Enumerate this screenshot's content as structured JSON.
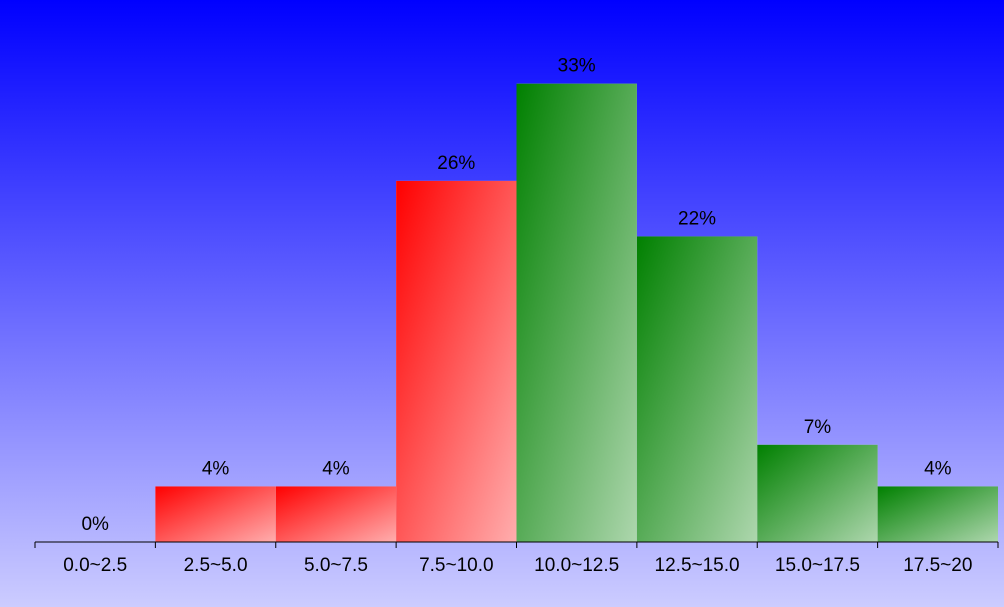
{
  "chart_data": {
    "type": "bar",
    "categories": [
      "0.0~2.5",
      "2.5~5.0",
      "5.0~7.5",
      "7.5~10.0",
      "10.0~12.5",
      "12.5~15.0",
      "15.0~17.5",
      "17.5~20"
    ],
    "values": [
      0,
      4,
      4,
      26,
      33,
      22,
      7,
      4
    ],
    "value_labels": [
      "0%",
      "4%",
      "4%",
      "26%",
      "33%",
      "22%",
      "7%",
      "4%"
    ],
    "bar_colors": [
      "#ff0000",
      "#ff0000",
      "#ff0000",
      "#ff0000",
      "#008000",
      "#008000",
      "#008000",
      "#008000"
    ],
    "ylim": [
      0,
      36
    ],
    "grid": false,
    "background_gradient": [
      "#0000ff",
      "#ccccff"
    ]
  }
}
